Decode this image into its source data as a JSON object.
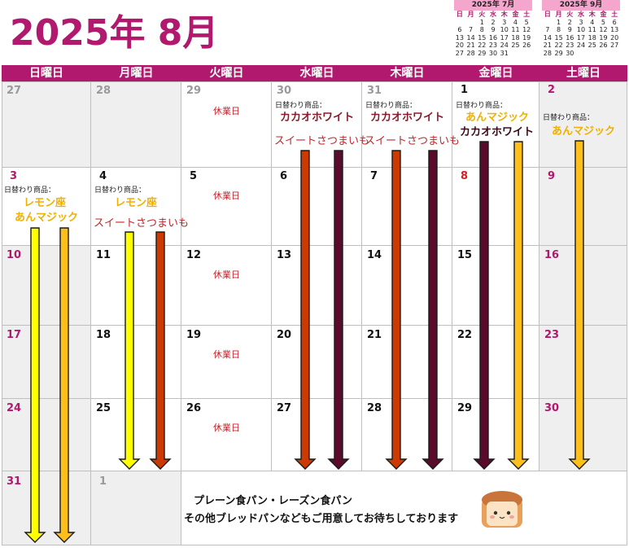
{
  "title": "2025年 8月",
  "mini_july": {
    "header": "2025年 7月",
    "dow": [
      "日",
      "月",
      "火",
      "水",
      "木",
      "金",
      "土"
    ],
    "rows": [
      [
        "",
        "",
        "1",
        "2",
        "3",
        "4",
        "5"
      ],
      [
        "6",
        "7",
        "8",
        "9",
        "10",
        "11",
        "12"
      ],
      [
        "13",
        "14",
        "15",
        "16",
        "17",
        "18",
        "19"
      ],
      [
        "20",
        "21",
        "22",
        "23",
        "24",
        "25",
        "26"
      ],
      [
        "27",
        "28",
        "29",
        "30",
        "31",
        "",
        ""
      ]
    ]
  },
  "mini_sept": {
    "header": "2025年 9月",
    "dow": [
      "日",
      "月",
      "火",
      "水",
      "木",
      "金",
      "土"
    ],
    "rows": [
      [
        "",
        "1",
        "2",
        "3",
        "4",
        "5",
        "6"
      ],
      [
        "7",
        "8",
        "9",
        "10",
        "11",
        "12",
        "13"
      ],
      [
        "14",
        "15",
        "16",
        "17",
        "18",
        "19",
        "20"
      ],
      [
        "21",
        "22",
        "23",
        "24",
        "25",
        "26",
        "27"
      ],
      [
        "28",
        "29",
        "30",
        "",
        "",
        "",
        ""
      ]
    ]
  },
  "weekdays": [
    "日曜日",
    "月曜日",
    "火曜日",
    "水曜日",
    "木曜日",
    "金曜日",
    "土曜日"
  ],
  "days": {
    "d27p": "27",
    "d28p": "28",
    "d29p": "29",
    "d30p": "30",
    "d31p": "31",
    "d1": "1",
    "d2": "2",
    "d3": "3",
    "d4": "4",
    "d5": "5",
    "d6": "6",
    "d7": "7",
    "d8": "8",
    "d9": "9",
    "d10": "10",
    "d11": "11",
    "d12": "12",
    "d13": "13",
    "d14": "14",
    "d15": "15",
    "d16": "16",
    "d17": "17",
    "d18": "18",
    "d19": "19",
    "d20": "20",
    "d21": "21",
    "d22": "22",
    "d23": "23",
    "d24": "24",
    "d25": "25",
    "d26": "26",
    "d27": "27",
    "d28": "28",
    "d29": "29",
    "d30": "30",
    "d31": "31",
    "d1n": "1"
  },
  "closed": "休業日",
  "daily_label": "日替わり商品：",
  "products": {
    "cacao": "カカオホワイト",
    "sweet": "スイートさつまいも",
    "an": "あんマジック",
    "lemon": "レモン座"
  },
  "footer": {
    "line1": "プレーン食パン・レーズン食パン",
    "line2": "その他ブレッドパンなどもご用意してお待ちしております"
  },
  "colors": {
    "brand": "#b0196d",
    "arrow_yellow": "#ffff00",
    "arrow_orange": "#ffbf1a",
    "arrow_red": "#cc3a00",
    "arrow_dark": "#5a0a2a"
  }
}
